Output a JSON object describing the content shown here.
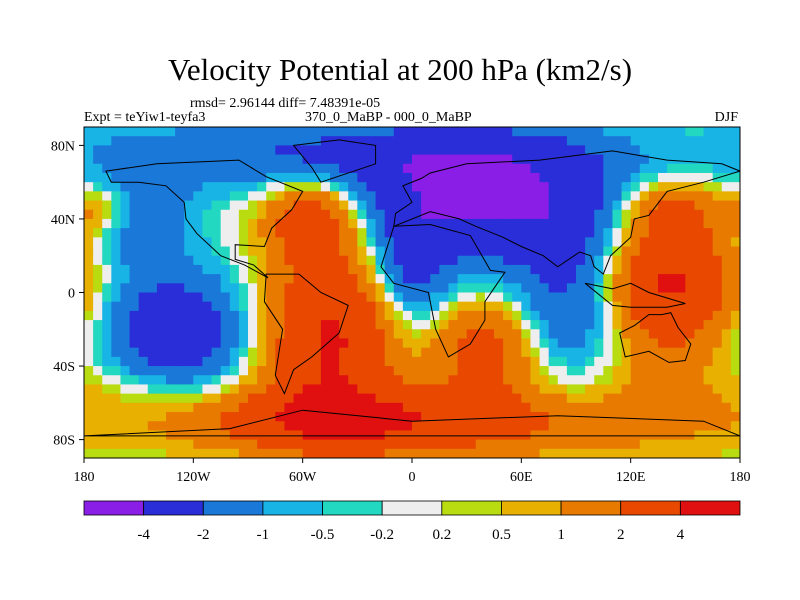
{
  "chart_data": {
    "type": "heatmap",
    "title": "Velocity Potential at 200 hPa (km2/s)",
    "stats": "rmsd= 2.96144 diff= 7.48391e-05",
    "left_label": "Expt = teYiw1-teyfa3",
    "center_label": "370_0_MaBP - 000_0_MaBP",
    "right_label": "DJF",
    "x_range": [
      -180,
      180
    ],
    "y_range": [
      -90,
      90
    ],
    "x_ticks": [
      {
        "value": -180,
        "label": "180"
      },
      {
        "value": -120,
        "label": "120W"
      },
      {
        "value": -60,
        "label": "60W"
      },
      {
        "value": 0,
        "label": "0"
      },
      {
        "value": 60,
        "label": "60E"
      },
      {
        "value": 120,
        "label": "120E"
      },
      {
        "value": 180,
        "label": "180"
      }
    ],
    "y_ticks": [
      {
        "value": 80,
        "label": "80N"
      },
      {
        "value": 40,
        "label": "40N"
      },
      {
        "value": 0,
        "label": "0"
      },
      {
        "value": -40,
        "label": "40S"
      },
      {
        "value": -80,
        "label": "80S"
      }
    ],
    "contour_levels": [
      "-4",
      "-2",
      "-1",
      "-0.5",
      "-0.2",
      "0.2",
      "0.5",
      "1",
      "2",
      "4"
    ],
    "contour_values": [
      -4,
      -2,
      -1,
      -0.5,
      -0.2,
      0.2,
      0.5,
      1,
      2,
      4
    ],
    "colors": [
      "#8a1ee6",
      "#2a2ed8",
      "#1a78d8",
      "#18b4e6",
      "#22d8c0",
      "#eeeeee",
      "#b8dc10",
      "#e8b000",
      "#e87a00",
      "#e84800",
      "#e01010"
    ],
    "field_centers": [
      {
        "lon": -130,
        "lat": -20,
        "amp": -3.4,
        "slon": 28,
        "slat": 22
      },
      {
        "lon": -150,
        "lat": 40,
        "amp": -2.0,
        "slon": 20,
        "slat": 18
      },
      {
        "lon": -100,
        "lat": 75,
        "amp": -1.3,
        "slon": 75,
        "slat": 14
      },
      {
        "lon": -55,
        "lat": 40,
        "amp": 3.2,
        "slon": 18,
        "slat": 16
      },
      {
        "lon": -45,
        "lat": -25,
        "amp": 4.2,
        "slon": 26,
        "slat": 35
      },
      {
        "lon": -40,
        "lat": -70,
        "amp": 2.8,
        "slon": 60,
        "slat": 12
      },
      {
        "lon": 40,
        "lat": 50,
        "amp": -4.4,
        "slon": 50,
        "slat": 24
      },
      {
        "lon": 0,
        "lat": 10,
        "amp": -2.2,
        "slon": 14,
        "slat": 22
      },
      {
        "lon": 0,
        "lat": 75,
        "amp": -1.4,
        "slon": 70,
        "slat": 12
      },
      {
        "lon": 40,
        "lat": -30,
        "amp": 2.6,
        "slon": 20,
        "slat": 18
      },
      {
        "lon": 90,
        "lat": -5,
        "amp": -2.4,
        "slon": 22,
        "slat": 35
      },
      {
        "lon": 140,
        "lat": 5,
        "amp": 4.4,
        "slon": 28,
        "slat": 24
      },
      {
        "lon": 140,
        "lat": 45,
        "amp": 2.0,
        "slon": 20,
        "slat": 12
      },
      {
        "lon": -170,
        "lat": 45,
        "amp": 1.6,
        "slon": 14,
        "slat": 10
      },
      {
        "lon": 120,
        "lat": -40,
        "amp": 0.7,
        "slon": 40,
        "slat": 15
      },
      {
        "lon": -160,
        "lat": -50,
        "amp": 0.3,
        "slon": 25,
        "slat": 10
      },
      {
        "lon": 60,
        "lat": -70,
        "amp": 1.8,
        "slon": 90,
        "slat": 15
      }
    ],
    "continents": [
      [
        [
          -168,
          66
        ],
        [
          -140,
          70
        ],
        [
          -95,
          72
        ],
        [
          -80,
          63
        ],
        [
          -60,
          55
        ],
        [
          -66,
          45
        ],
        [
          -77,
          35
        ],
        [
          -81,
          25
        ],
        [
          -97,
          26
        ],
        [
          -97,
          18
        ],
        [
          -87,
          15
        ],
        [
          -79,
          8
        ],
        [
          -92,
          15
        ],
        [
          -105,
          20
        ],
        [
          -118,
          32
        ],
        [
          -124,
          40
        ],
        [
          -125,
          49
        ],
        [
          -135,
          58
        ],
        [
          -150,
          60
        ],
        [
          -165,
          60
        ]
      ],
      [
        [
          -80,
          10
        ],
        [
          -62,
          10
        ],
        [
          -50,
          0
        ],
        [
          -35,
          -7
        ],
        [
          -40,
          -22
        ],
        [
          -55,
          -35
        ],
        [
          -65,
          -42
        ],
        [
          -70,
          -55
        ],
        [
          -75,
          -45
        ],
        [
          -71,
          -20
        ],
        [
          -81,
          -5
        ]
      ],
      [
        [
          -50,
          60
        ],
        [
          -20,
          70
        ],
        [
          -20,
          80
        ],
        [
          -40,
          83
        ],
        [
          -65,
          80
        ],
        [
          -55,
          68
        ]
      ],
      [
        [
          -10,
          36
        ],
        [
          10,
          37
        ],
        [
          32,
          31
        ],
        [
          43,
          12
        ],
        [
          51,
          11
        ],
        [
          40,
          -5
        ],
        [
          40,
          -15
        ],
        [
          32,
          -28
        ],
        [
          20,
          -35
        ],
        [
          13,
          -20
        ],
        [
          9,
          0
        ],
        [
          -10,
          5
        ],
        [
          -17,
          14
        ]
      ],
      [
        [
          -10,
          36
        ],
        [
          -9,
          43
        ],
        [
          0,
          49
        ],
        [
          -5,
          58
        ],
        [
          5,
          62
        ],
        [
          10,
          65
        ],
        [
          30,
          70
        ],
        [
          70,
          72
        ],
        [
          110,
          77
        ],
        [
          140,
          72
        ],
        [
          170,
          70
        ],
        [
          180,
          66
        ],
        [
          160,
          60
        ],
        [
          140,
          55
        ],
        [
          130,
          42
        ],
        [
          122,
          40
        ],
        [
          120,
          30
        ],
        [
          109,
          20
        ],
        [
          105,
          10
        ],
        [
          100,
          14
        ],
        [
          98,
          20
        ],
        [
          92,
          22
        ],
        [
          80,
          14
        ],
        [
          72,
          20
        ],
        [
          60,
          25
        ],
        [
          50,
          30
        ],
        [
          35,
          36
        ],
        [
          26,
          40
        ],
        [
          10,
          44
        ]
      ],
      [
        [
          114,
          -22
        ],
        [
          122,
          -18
        ],
        [
          130,
          -12
        ],
        [
          137,
          -12
        ],
        [
          142,
          -11
        ],
        [
          146,
          -19
        ],
        [
          153,
          -28
        ],
        [
          150,
          -37
        ],
        [
          141,
          -38
        ],
        [
          130,
          -32
        ],
        [
          117,
          -35
        ]
      ],
      [
        [
          95,
          5
        ],
        [
          110,
          -7
        ],
        [
          120,
          -8
        ],
        [
          140,
          -8
        ],
        [
          150,
          -6
        ],
        [
          130,
          0
        ],
        [
          120,
          5
        ],
        [
          110,
          2
        ]
      ],
      [
        [
          -180,
          -78
        ],
        [
          -100,
          -74
        ],
        [
          -60,
          -64
        ],
        [
          0,
          -70
        ],
        [
          80,
          -67
        ],
        [
          160,
          -70
        ],
        [
          180,
          -78
        ]
      ]
    ]
  }
}
